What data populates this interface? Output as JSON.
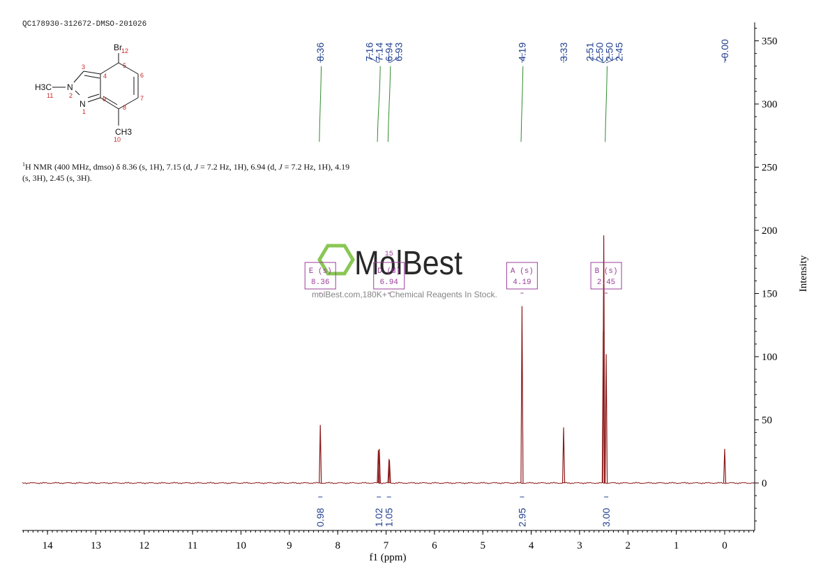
{
  "sample_id": "QC178930-312672-DMSO-201026",
  "structure": {
    "atoms": {
      "br": "Br",
      "methyl_n": "H3C",
      "n2": "N",
      "n1": "N",
      "methyl_c": "CH3"
    },
    "numbers": [
      "12",
      "3",
      "4",
      "5",
      "6",
      "7",
      "8",
      "9",
      "1",
      "2",
      "11",
      "10"
    ]
  },
  "description": {
    "nucleus": "1",
    "text1": "H NMR (400 MHz, dmso) δ 8.36 (s, 1H), 7.15 (d, ",
    "j1": "J",
    "text2": " = 7.2 Hz, 1H), 6.94 (d, ",
    "j2": "J",
    "text3": " = 7.2 Hz, 1H), 4.19 (s, 3H), 2.45 (s, 3H)."
  },
  "watermark": {
    "brand": "MolBest",
    "tagline": "molBest.com,180K+ Chemical Reagents In Stock."
  },
  "colors": {
    "spectrum": "#8b1a1a",
    "peak_labels": "#1f3f8f",
    "integral_curve": "#2e8b2e",
    "multiplet_box": "#9a3f9a",
    "watermark_logo": "#7dc242",
    "atom_numbers": "#cc2222"
  },
  "chart_data": {
    "type": "line",
    "title": "",
    "xlabel": "f1 (ppm)",
    "ylabel": "Intensity",
    "x_reversed": true,
    "xlim": [
      14.6,
      -0.6
    ],
    "ylim": [
      -38,
      368
    ],
    "x_ticks": [
      14,
      13,
      12,
      11,
      10,
      9,
      8,
      7,
      6,
      5,
      4,
      3,
      2,
      1,
      0
    ],
    "y_ticks": [
      0,
      50,
      100,
      150,
      200,
      250,
      300,
      350
    ],
    "peaks": [
      {
        "ppm": 8.36,
        "height": 46
      },
      {
        "ppm": 7.16,
        "height": 26
      },
      {
        "ppm": 7.14,
        "height": 27
      },
      {
        "ppm": 6.94,
        "height": 19
      },
      {
        "ppm": 6.93,
        "height": 18
      },
      {
        "ppm": 4.19,
        "height": 140
      },
      {
        "ppm": 3.33,
        "height": 44
      },
      {
        "ppm": 2.51,
        "height": 120
      },
      {
        "ppm": 2.5,
        "height": 196
      },
      {
        "ppm": 2.45,
        "height": 102
      },
      {
        "ppm": 0.0,
        "height": 27
      }
    ],
    "peak_labels": [
      {
        "group": [
          "8.36"
        ],
        "ppm": [
          8.36
        ]
      },
      {
        "group": [
          "7.16",
          "7.14",
          "6.94",
          "6.93"
        ],
        "ppm": [
          7.16,
          7.14,
          6.94,
          6.93
        ]
      },
      {
        "group": [
          "4.19"
        ],
        "ppm": [
          4.19
        ]
      },
      {
        "group": [
          "3.33"
        ],
        "ppm": [
          3.33
        ]
      },
      {
        "group": [
          "2.51",
          "2.50",
          "2.50",
          "2.45"
        ],
        "ppm": [
          2.51,
          2.5,
          2.5,
          2.45
        ]
      },
      {
        "group": [
          "-0.00"
        ],
        "ppm": [
          0.0
        ]
      }
    ],
    "integrals": [
      {
        "ppm": 8.36,
        "from": 8.38,
        "to": 8.34,
        "value": "0.98"
      },
      {
        "ppm": 7.15,
        "from": 7.18,
        "to": 7.12,
        "value": "1.02"
      },
      {
        "ppm": 6.94,
        "from": 6.96,
        "to": 6.91,
        "value": "1.05"
      },
      {
        "ppm": 4.19,
        "from": 4.21,
        "to": 4.17,
        "value": "2.95"
      },
      {
        "ppm": 2.45,
        "from": 2.47,
        "to": 2.43,
        "value": "3.00"
      }
    ],
    "integral_curve_range": [
      270,
      330
    ],
    "multiplets": [
      {
        "label": "E (s)",
        "value": "8.36",
        "ppm": 8.36
      },
      {
        "label": "D (d)",
        "value": "6.94",
        "ppm": 6.94,
        "extra": "15"
      },
      {
        "label": "A (s)",
        "value": "4.19",
        "ppm": 4.19
      },
      {
        "label": "B (s)",
        "value": "2.45",
        "ppm": 2.45
      }
    ]
  }
}
